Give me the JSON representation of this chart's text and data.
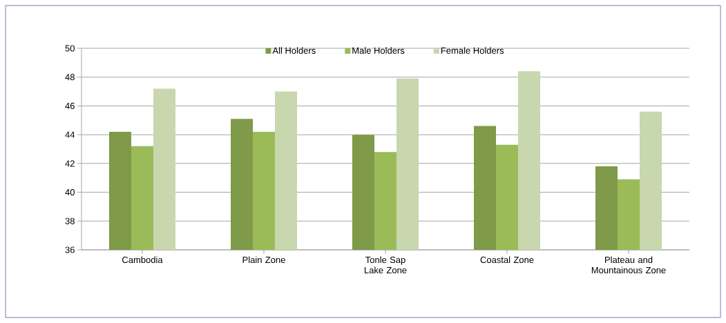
{
  "chart_data": {
    "type": "bar",
    "categories": [
      "Cambodia",
      "Plain Zone",
      "Tonle Sap Lake Zone",
      "Coastal Zone",
      "Plateau and Mountainous Zone"
    ],
    "series": [
      {
        "name": "All Holders",
        "color": "#7f9a48",
        "values": [
          44.2,
          45.1,
          44.0,
          44.6,
          41.8
        ]
      },
      {
        "name": "Male Holders",
        "color": "#9bbb59",
        "values": [
          43.2,
          44.2,
          42.8,
          43.3,
          40.9
        ]
      },
      {
        "name": "Female Holders",
        "color": "#c8d7ae",
        "values": [
          47.2,
          47.0,
          47.9,
          48.4,
          45.6
        ]
      }
    ],
    "ylim": [
      36,
      50
    ],
    "yticks": [
      36,
      38,
      40,
      42,
      44,
      46,
      48,
      50
    ],
    "grid": "y",
    "legend": "top"
  }
}
